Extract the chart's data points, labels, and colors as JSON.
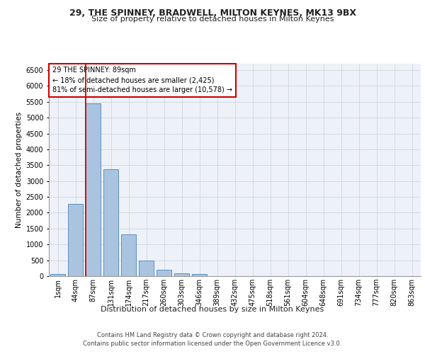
{
  "title1": "29, THE SPINNEY, BRADWELL, MILTON KEYNES, MK13 9BX",
  "title2": "Size of property relative to detached houses in Milton Keynes",
  "xlabel": "Distribution of detached houses by size in Milton Keynes",
  "ylabel": "Number of detached properties",
  "footer1": "Contains HM Land Registry data © Crown copyright and database right 2024.",
  "footer2": "Contains public sector information licensed under the Open Government Licence v3.0.",
  "annotation_line1": "29 THE SPINNEY: 89sqm",
  "annotation_line2": "← 18% of detached houses are smaller (2,425)",
  "annotation_line3": "81% of semi-detached houses are larger (10,578) →",
  "bar_categories": [
    "1sqm",
    "44sqm",
    "87sqm",
    "131sqm",
    "174sqm",
    "217sqm",
    "260sqm",
    "303sqm",
    "346sqm",
    "389sqm",
    "432sqm",
    "475sqm",
    "518sqm",
    "561sqm",
    "604sqm",
    "648sqm",
    "691sqm",
    "734sqm",
    "777sqm",
    "820sqm",
    "863sqm"
  ],
  "bar_values": [
    70,
    2280,
    5450,
    3380,
    1310,
    490,
    190,
    90,
    60,
    0,
    0,
    0,
    0,
    0,
    0,
    0,
    0,
    0,
    0,
    0,
    0
  ],
  "bar_color": "#aac4e0",
  "bar_edge_color": "#5a8fc0",
  "highlight_bar_index": 2,
  "highlight_color": "#cc0000",
  "ylim": [
    0,
    6700
  ],
  "yticks": [
    0,
    500,
    1000,
    1500,
    2000,
    2500,
    3000,
    3500,
    4000,
    4500,
    5000,
    5500,
    6000,
    6500
  ],
  "annotation_box_color": "#ffffff",
  "annotation_box_edge_color": "#cc0000",
  "bg_color": "#eef2f8",
  "grid_color": "#c8d0de",
  "title1_fontsize": 9,
  "title2_fontsize": 8,
  "ylabel_fontsize": 7.5,
  "xlabel_fontsize": 8,
  "tick_fontsize": 7,
  "annotation_fontsize": 7,
  "footer_fontsize": 6
}
